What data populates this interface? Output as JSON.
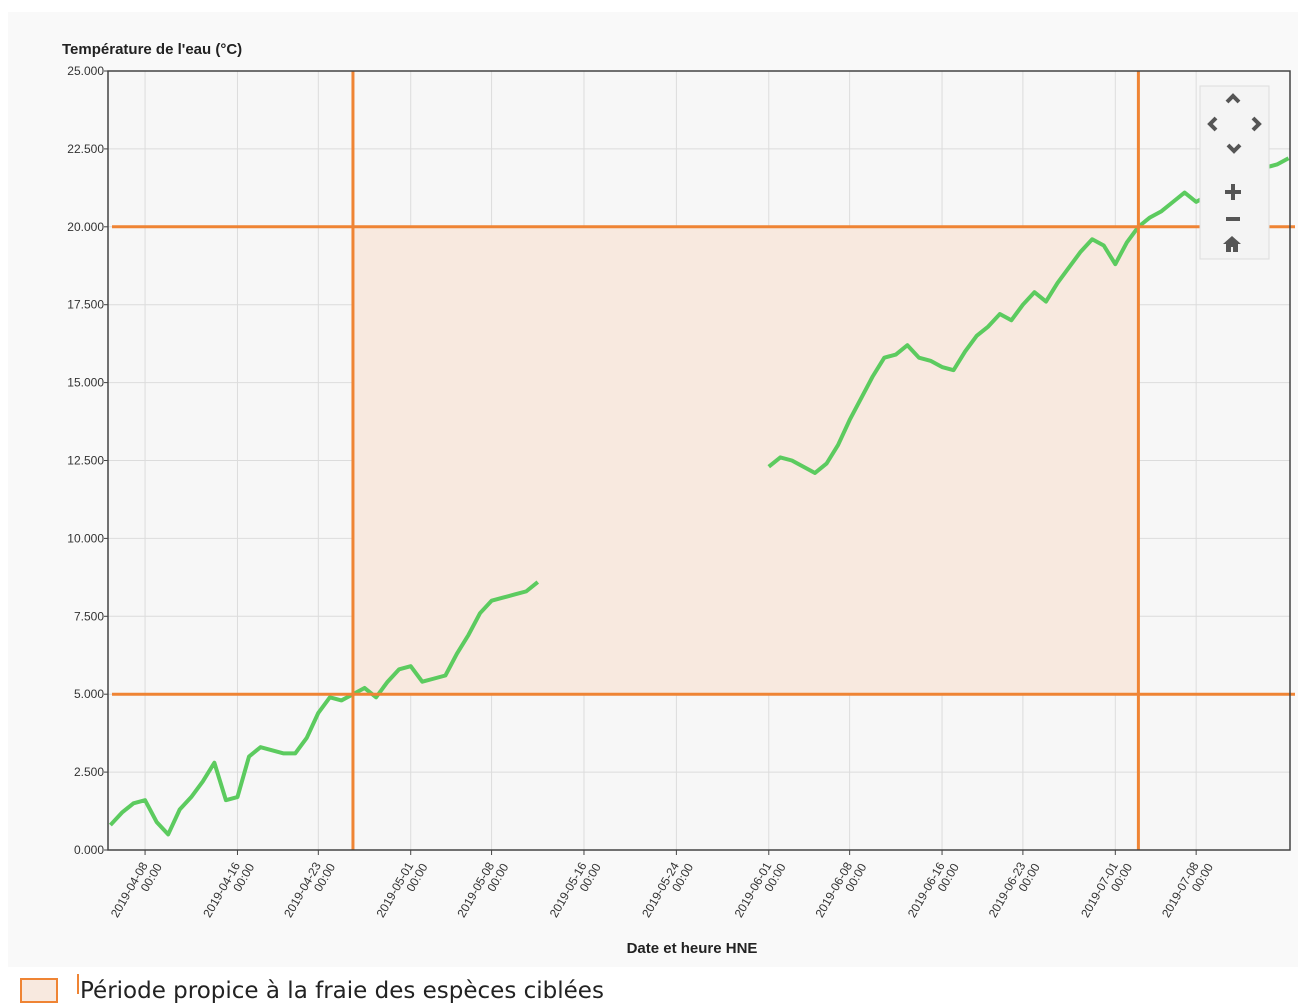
{
  "chart_data": {
    "type": "line",
    "title": "Température de l'eau (°C)",
    "x_label": "Date et heure HNE",
    "color": "#5ccb5f",
    "x": [
      "2019-04-05 00:00",
      "2019-04-06 00:00",
      "2019-04-07 00:00",
      "2019-04-08 00:00",
      "2019-04-09 00:00",
      "2019-04-10 00:00",
      "2019-04-11 00:00",
      "2019-04-12 00:00",
      "2019-04-13 00:00",
      "2019-04-14 00:00",
      "2019-04-15 00:00",
      "2019-04-16 00:00",
      "2019-04-17 00:00",
      "2019-04-18 00:00",
      "2019-04-19 00:00",
      "2019-04-20 00:00",
      "2019-04-21 00:00",
      "2019-04-22 00:00",
      "2019-04-23 00:00",
      "2019-04-24 00:00",
      "2019-04-25 00:00",
      "2019-04-26 00:00",
      "2019-04-27 00:00",
      "2019-04-28 00:00",
      "2019-04-29 00:00",
      "2019-04-30 00:00",
      "2019-05-01 00:00",
      "2019-05-02 00:00",
      "2019-05-03 00:00",
      "2019-05-04 00:00",
      "2019-05-05 00:00",
      "2019-05-06 00:00",
      "2019-05-07 00:00",
      "2019-05-08 00:00",
      "2019-05-09 00:00",
      "2019-05-10 00:00",
      "2019-05-11 00:00",
      "2019-05-12 00:00",
      "2019-05-20 00:00",
      "2019-06-01 00:00",
      "2019-06-02 00:00",
      "2019-06-03 00:00",
      "2019-06-04 00:00",
      "2019-06-05 00:00",
      "2019-06-06 00:00",
      "2019-06-07 00:00",
      "2019-06-08 00:00",
      "2019-06-09 00:00",
      "2019-06-10 00:00",
      "2019-06-11 00:00",
      "2019-06-12 00:00",
      "2019-06-13 00:00",
      "2019-06-14 00:00",
      "2019-06-15 00:00",
      "2019-06-16 00:00",
      "2019-06-17 00:00",
      "2019-06-18 00:00",
      "2019-06-19 00:00",
      "2019-06-20 00:00",
      "2019-06-21 00:00",
      "2019-06-22 00:00",
      "2019-06-23 00:00",
      "2019-06-24 00:00",
      "2019-06-25 00:00",
      "2019-06-26 00:00",
      "2019-06-27 00:00",
      "2019-06-28 00:00",
      "2019-06-29 00:00",
      "2019-06-30 00:00",
      "2019-07-01 00:00",
      "2019-07-02 00:00",
      "2019-07-03 00:00",
      "2019-07-04 00:00",
      "2019-07-05 00:00",
      "2019-07-06 00:00",
      "2019-07-07 00:00",
      "2019-07-08 00:00",
      "2019-07-09 00:00",
      "2019-07-10 00:00",
      "2019-07-11 00:00",
      "2019-07-12 00:00",
      "2019-07-13 00:00",
      "2019-07-14 00:00",
      "2019-07-15 00:00",
      "2019-07-16 00:00"
    ],
    "values": [
      0.8,
      1.2,
      1.5,
      1.6,
      0.9,
      0.5,
      1.3,
      1.7,
      2.2,
      2.8,
      1.6,
      1.7,
      3.0,
      3.3,
      3.2,
      3.1,
      3.1,
      3.6,
      4.4,
      4.9,
      4.8,
      5.0,
      5.2,
      4.9,
      5.4,
      5.8,
      5.9,
      5.4,
      5.5,
      5.6,
      6.3,
      6.9,
      7.6,
      8.0,
      8.1,
      8.2,
      8.3,
      8.6,
      null,
      12.3,
      12.6,
      12.5,
      12.3,
      12.1,
      12.4,
      13.0,
      13.8,
      14.5,
      15.2,
      15.8,
      15.9,
      16.2,
      15.8,
      15.7,
      15.5,
      15.4,
      16.0,
      16.5,
      16.8,
      17.2,
      17.0,
      17.5,
      17.9,
      17.6,
      18.2,
      18.7,
      19.2,
      19.6,
      19.4,
      18.8,
      19.5,
      20.0,
      20.3,
      20.5,
      20.8,
      21.1,
      20.8,
      21.0,
      21.3,
      21.5,
      21.7,
      21.8,
      21.9,
      22.0,
      22.2
    ],
    "xlim": [
      "2019-04-04 19:00",
      "2019-07-16 03:00"
    ],
    "xticks": [
      "2019-04-08 00:00",
      "2019-04-16 00:00",
      "2019-04-23 00:00",
      "2019-05-01 00:00",
      "2019-05-08 00:00",
      "2019-05-16 00:00",
      "2019-05-24 00:00",
      "2019-06-01 00:00",
      "2019-06-08 00:00",
      "2019-06-16 00:00",
      "2019-06-23 00:00",
      "2019-07-01 00:00",
      "2019-07-08 00:00"
    ],
    "ylim": [
      0,
      25
    ],
    "yticks": [
      {
        "value": 0,
        "label": "0.000"
      },
      {
        "value": 2.5,
        "label": "2.500"
      },
      {
        "value": 5,
        "label": "5.000"
      },
      {
        "value": 7.5,
        "label": "7.500"
      },
      {
        "value": 10,
        "label": "10.000"
      },
      {
        "value": 12.5,
        "label": "12.500"
      },
      {
        "value": 15,
        "label": "15.000"
      },
      {
        "value": 17.5,
        "label": "17.500"
      },
      {
        "value": 20,
        "label": "20.000"
      },
      {
        "value": 22.5,
        "label": "22.500"
      },
      {
        "value": 25,
        "label": "25.000"
      }
    ],
    "grid": true,
    "reference_band": {
      "label": "Période propice à la fraie des espèces ciblées",
      "x": [
        "2019-04-26 00:00",
        "2019-07-03 00:00"
      ],
      "y": [
        5,
        20
      ],
      "color": "#ef8434",
      "fill": "#f8e9df"
    }
  }
}
